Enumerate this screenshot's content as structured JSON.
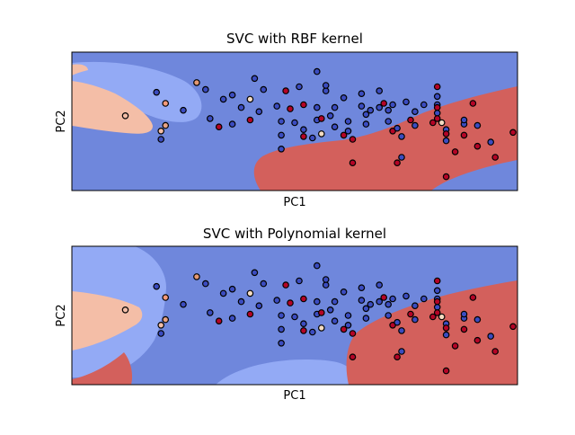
{
  "chart_data": [
    {
      "type": "scatter",
      "title": "SVC with RBF kernel",
      "xlabel": "PC1",
      "ylabel": "PC2",
      "xlim": [
        0,
        100
      ],
      "ylim": [
        0,
        100
      ],
      "xticks": [],
      "yticks": [],
      "grid": false,
      "colors": {
        "dark_blue": "#6f87dc",
        "light_blue": "#93aaf5",
        "peach": "#f4bea7",
        "dark_red": "#d3605c"
      },
      "points": [
        {
          "x": 12,
          "y": 54,
          "c": "#f4bea7"
        },
        {
          "x": 19,
          "y": 71,
          "c": "#3b4cc0"
        },
        {
          "x": 21,
          "y": 63,
          "c": "#f49a7b"
        },
        {
          "x": 20,
          "y": 43,
          "c": "#f4bea7"
        },
        {
          "x": 21,
          "y": 47,
          "c": "#e8a385"
        },
        {
          "x": 20,
          "y": 37,
          "c": "#3b4cc0"
        },
        {
          "x": 25,
          "y": 58,
          "c": "#3b4cc0"
        },
        {
          "x": 28,
          "y": 78,
          "c": "#e59973"
        },
        {
          "x": 30,
          "y": 73,
          "c": "#3b4cc0"
        },
        {
          "x": 31,
          "y": 52,
          "c": "#3b4cc0"
        },
        {
          "x": 33,
          "y": 46,
          "c": "#b40426"
        },
        {
          "x": 34,
          "y": 66,
          "c": "#3b4cc0"
        },
        {
          "x": 36,
          "y": 48,
          "c": "#3b4cc0"
        },
        {
          "x": 36,
          "y": 69,
          "c": "#3b4cc0"
        },
        {
          "x": 38,
          "y": 60,
          "c": "#3b4cc0"
        },
        {
          "x": 41,
          "y": 81,
          "c": "#3b4cc0"
        },
        {
          "x": 40,
          "y": 66,
          "c": "#f5dcc2"
        },
        {
          "x": 40,
          "y": 51,
          "c": "#b40426"
        },
        {
          "x": 42,
          "y": 57,
          "c": "#3b4cc0"
        },
        {
          "x": 43,
          "y": 73,
          "c": "#3b4cc0"
        },
        {
          "x": 46,
          "y": 61,
          "c": "#3b4cc0"
        },
        {
          "x": 47,
          "y": 50,
          "c": "#3b4cc0"
        },
        {
          "x": 47,
          "y": 40,
          "c": "#3b4cc0"
        },
        {
          "x": 47,
          "y": 30,
          "c": "#3b4cc0"
        },
        {
          "x": 48,
          "y": 72,
          "c": "#b40426"
        },
        {
          "x": 49,
          "y": 59,
          "c": "#b40426"
        },
        {
          "x": 50,
          "y": 49,
          "c": "#3b4cc0"
        },
        {
          "x": 51,
          "y": 75,
          "c": "#3b4cc0"
        },
        {
          "x": 52,
          "y": 44,
          "c": "#3b4cc0"
        },
        {
          "x": 52,
          "y": 39,
          "c": "#b40426"
        },
        {
          "x": 55,
          "y": 86,
          "c": "#3b4cc0"
        },
        {
          "x": 52,
          "y": 62,
          "c": "#b40426"
        },
        {
          "x": 55,
          "y": 51,
          "c": "#3b4cc0"
        },
        {
          "x": 54,
          "y": 38,
          "c": "#3b4cc0"
        },
        {
          "x": 55,
          "y": 60,
          "c": "#3b4cc0"
        },
        {
          "x": 56,
          "y": 52,
          "c": "#b40426"
        },
        {
          "x": 56,
          "y": 41,
          "c": "#f5dcc2"
        },
        {
          "x": 57,
          "y": 72,
          "c": "#3b4cc0"
        },
        {
          "x": 57,
          "y": 76,
          "c": "#3b4cc0"
        },
        {
          "x": 58,
          "y": 54,
          "c": "#3b4cc0"
        },
        {
          "x": 59,
          "y": 60,
          "c": "#3b4cc0"
        },
        {
          "x": 59,
          "y": 46,
          "c": "#3b4cc0"
        },
        {
          "x": 61,
          "y": 67,
          "c": "#3b4cc0"
        },
        {
          "x": 61,
          "y": 40,
          "c": "#b40426"
        },
        {
          "x": 62,
          "y": 50,
          "c": "#3b4cc0"
        },
        {
          "x": 62,
          "y": 43,
          "c": "#3b4cc0"
        },
        {
          "x": 63,
          "y": 20,
          "c": "#b40426"
        },
        {
          "x": 63,
          "y": 37,
          "c": "#b40426"
        },
        {
          "x": 65,
          "y": 70,
          "c": "#3b4cc0"
        },
        {
          "x": 65,
          "y": 61,
          "c": "#3b4cc0"
        },
        {
          "x": 66,
          "y": 55,
          "c": "#3b4cc0"
        },
        {
          "x": 66,
          "y": 48,
          "c": "#3b4cc0"
        },
        {
          "x": 67,
          "y": 58,
          "c": "#3b4cc0"
        },
        {
          "x": 69,
          "y": 60,
          "c": "#3b4cc0"
        },
        {
          "x": 69,
          "y": 72,
          "c": "#3b4cc0"
        },
        {
          "x": 70,
          "y": 63,
          "c": "#b40426"
        },
        {
          "x": 71,
          "y": 58,
          "c": "#3b4cc0"
        },
        {
          "x": 71,
          "y": 50,
          "c": "#3b4cc0"
        },
        {
          "x": 72,
          "y": 62,
          "c": "#3b4cc0"
        },
        {
          "x": 72,
          "y": 43,
          "c": "#b40426"
        },
        {
          "x": 73,
          "y": 45,
          "c": "#3b4cc0"
        },
        {
          "x": 74,
          "y": 39,
          "c": "#3b4cc0"
        },
        {
          "x": 74,
          "y": 24,
          "c": "#3b4cc0"
        },
        {
          "x": 73,
          "y": 20,
          "c": "#b40426"
        },
        {
          "x": 75,
          "y": 64,
          "c": "#3b4cc0"
        },
        {
          "x": 76,
          "y": 51,
          "c": "#b40426"
        },
        {
          "x": 77,
          "y": 47,
          "c": "#3b4cc0"
        },
        {
          "x": 77,
          "y": 57,
          "c": "#3b4cc0"
        },
        {
          "x": 79,
          "y": 62,
          "c": "#3b4cc0"
        },
        {
          "x": 81,
          "y": 49,
          "c": "#b40426"
        },
        {
          "x": 82,
          "y": 68,
          "c": "#3b4cc0"
        },
        {
          "x": 82,
          "y": 62,
          "c": "#3b4cc0"
        },
        {
          "x": 82,
          "y": 75,
          "c": "#b40426"
        },
        {
          "x": 82,
          "y": 60,
          "c": "#b40426"
        },
        {
          "x": 82,
          "y": 56,
          "c": "#3b4cc0"
        },
        {
          "x": 82,
          "y": 52,
          "c": "#b40426"
        },
        {
          "x": 83,
          "y": 49,
          "c": "#f5dcc2"
        },
        {
          "x": 84,
          "y": 44,
          "c": "#3b4cc0"
        },
        {
          "x": 84,
          "y": 36,
          "c": "#3b4cc0"
        },
        {
          "x": 84,
          "y": 41,
          "c": "#b40426"
        },
        {
          "x": 84,
          "y": 10,
          "c": "#b40426"
        },
        {
          "x": 88,
          "y": 48,
          "c": "#3b4cc0"
        },
        {
          "x": 88,
          "y": 51,
          "c": "#3b4cc0"
        },
        {
          "x": 88,
          "y": 40,
          "c": "#b40426"
        },
        {
          "x": 90,
          "y": 63,
          "c": "#b40426"
        },
        {
          "x": 91,
          "y": 32,
          "c": "#b40426"
        },
        {
          "x": 91,
          "y": 47,
          "c": "#3b4cc0"
        },
        {
          "x": 94,
          "y": 35,
          "c": "#3b4cc0"
        },
        {
          "x": 95,
          "y": 24,
          "c": "#b40426"
        },
        {
          "x": 86,
          "y": 28,
          "c": "#b40426"
        },
        {
          "x": 99,
          "y": 42,
          "c": "#b40426"
        }
      ]
    },
    {
      "type": "scatter",
      "title": "SVC with Polynomial kernel",
      "xlabel": "PC1",
      "ylabel": "PC2",
      "xlim": [
        0,
        100
      ],
      "ylim": [
        0,
        100
      ],
      "xticks": [],
      "yticks": [],
      "grid": false,
      "colors": {
        "dark_blue": "#6f87dc",
        "light_blue": "#93aaf5",
        "peach": "#f4bea7",
        "dark_red": "#d3605c"
      }
    }
  ]
}
